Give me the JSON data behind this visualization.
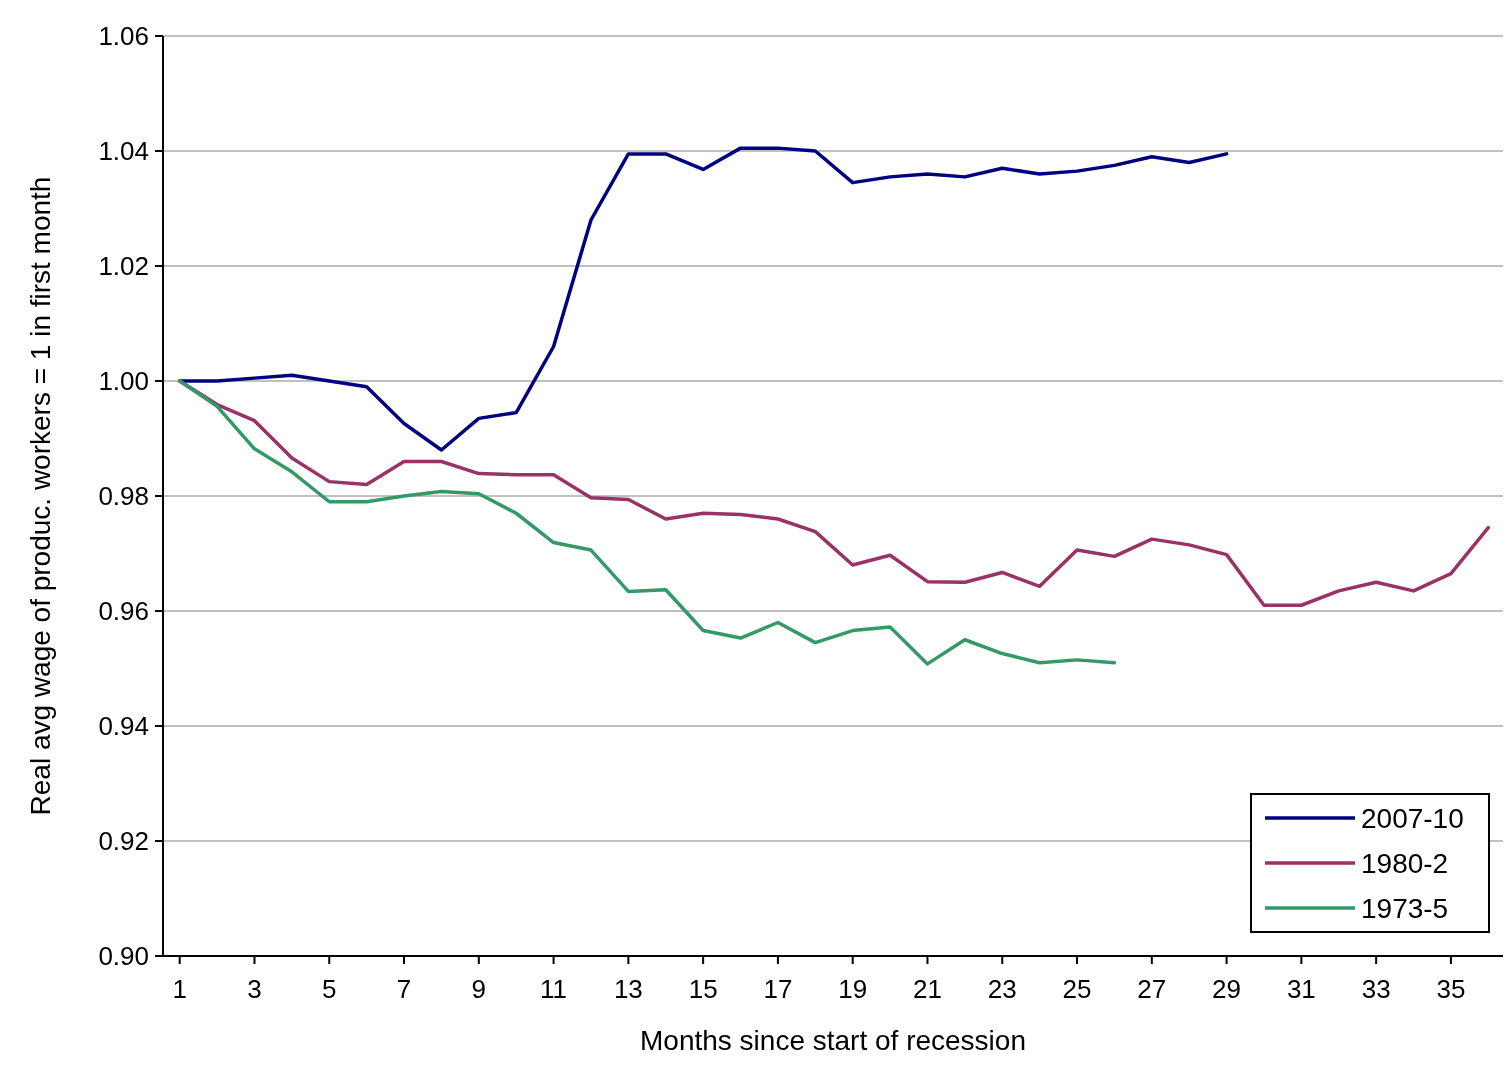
{
  "chart_data": {
    "type": "line",
    "xlabel": "Months since start of recession",
    "ylabel": "Real avg wage of produc. workers = 1 in first month",
    "x": [
      1,
      2,
      3,
      4,
      5,
      6,
      7,
      8,
      9,
      10,
      11,
      12,
      13,
      14,
      15,
      16,
      17,
      18,
      19,
      20,
      21,
      22,
      23,
      24,
      25,
      26,
      27,
      28,
      29,
      30,
      31,
      32,
      33,
      34,
      35,
      36
    ],
    "xlim": [
      0.5,
      36.5
    ],
    "xticks": [
      1,
      3,
      5,
      7,
      9,
      11,
      13,
      15,
      17,
      19,
      21,
      23,
      25,
      27,
      29,
      31,
      33,
      35
    ],
    "series": [
      {
        "name": "2007-10",
        "color": "#000080",
        "values": [
          1.0,
          1.0,
          1.0005,
          1.001,
          1.0,
          0.999,
          0.9926,
          0.988,
          0.9935,
          0.9945,
          1.006,
          1.028,
          1.0395,
          1.0395,
          1.0368,
          1.0405,
          1.0405,
          1.04,
          1.0345,
          1.0355,
          1.036,
          1.0355,
          1.037,
          1.036,
          1.0365,
          1.0375,
          1.039,
          1.038,
          1.0395,
          null,
          null,
          null,
          null,
          null,
          null,
          null
        ]
      },
      {
        "name": "1980-2",
        "color": "#993366",
        "values": [
          1.0,
          0.9959,
          0.9931,
          0.9866,
          0.9825,
          0.982,
          0.986,
          0.986,
          0.9839,
          0.9837,
          0.9837,
          0.9797,
          0.9794,
          0.976,
          0.977,
          0.9768,
          0.976,
          0.9738,
          0.968,
          0.9697,
          0.9651,
          0.965,
          0.9667,
          0.9643,
          0.9706,
          0.9695,
          0.9725,
          0.9715,
          0.9698,
          0.961,
          0.961,
          0.9635,
          0.965,
          0.9635,
          0.9665,
          0.9745
        ]
      },
      {
        "name": "1973-5",
        "color": "#339966",
        "values": [
          1.0,
          0.9956,
          0.9882,
          0.9842,
          0.979,
          0.979,
          0.98,
          0.9808,
          0.9804,
          0.977,
          0.9719,
          0.9706,
          0.9634,
          0.9637,
          0.9566,
          0.9553,
          0.958,
          0.9545,
          0.9566,
          0.9572,
          0.9508,
          0.955,
          0.9526,
          0.951,
          0.9515,
          0.951,
          null,
          null,
          null,
          null,
          null,
          null,
          null,
          null,
          null,
          null
        ]
      }
    ],
    "ylim": [
      0.9,
      1.06
    ],
    "yticks": [
      {
        "value": 0.9,
        "label": "0.90"
      },
      {
        "value": 0.92,
        "label": "0.92"
      },
      {
        "value": 0.94,
        "label": "0.94"
      },
      {
        "value": 0.96,
        "label": "0.96"
      },
      {
        "value": 0.98,
        "label": "0.98"
      },
      {
        "value": 1.0,
        "label": "1.00"
      },
      {
        "value": 1.02,
        "label": "1.02"
      },
      {
        "value": 1.04,
        "label": "1.04"
      },
      {
        "value": 1.06,
        "label": "1.06"
      }
    ],
    "grid": "y",
    "legend": "bottom right",
    "marker": "none",
    "line_style": "solid"
  }
}
